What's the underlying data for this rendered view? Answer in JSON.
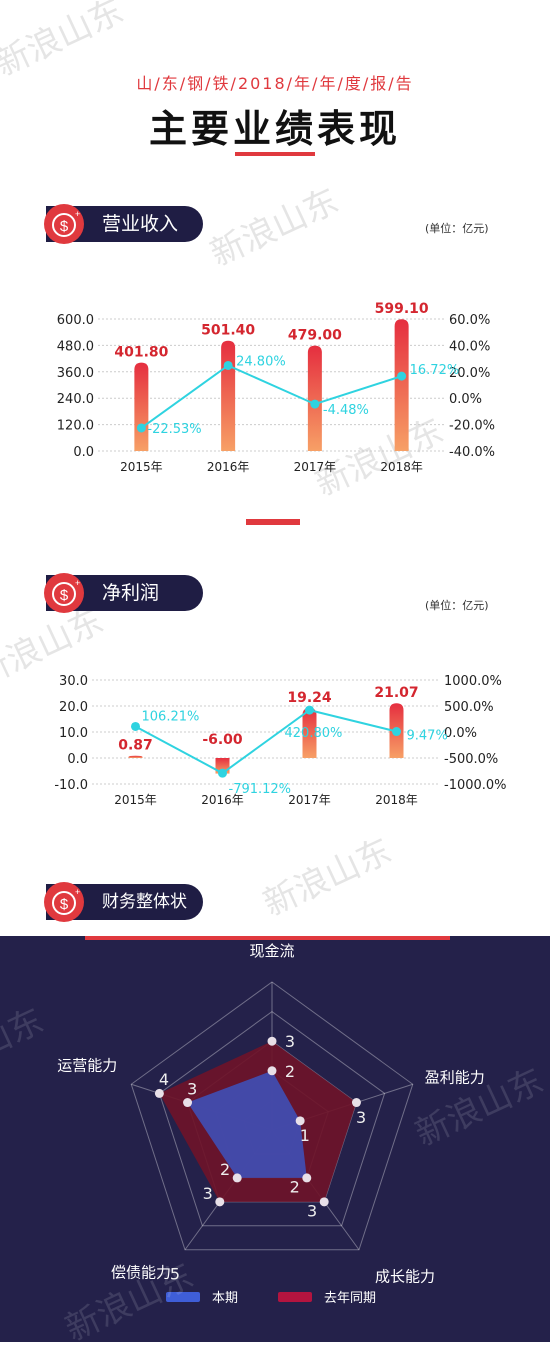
{
  "header": {
    "subtitle": "山/东/钢/铁/2018/年/年/度/报/告",
    "title": "主要业绩表现"
  },
  "watermark_text": "新浪山东",
  "sections": {
    "revenue": {
      "title": "营业收入",
      "unit": "(单位：亿元)"
    },
    "profit": {
      "title": "净利润",
      "unit": "(单位：亿元)"
    },
    "finance": {
      "title": "财务整体状况"
    }
  },
  "colors": {
    "bar_top": "#e52e3f",
    "bar_bottom": "#f7a066",
    "growth_line": "#2fd3e0",
    "dark_bg": "#24214a",
    "accent": "#e0393e",
    "radar_current": "#3f4fb6",
    "radar_last": "#6e1329"
  },
  "chart_data": [
    {
      "type": "bar",
      "name": "revenue",
      "categories": [
        "2015年",
        "2016年",
        "2017年",
        "2018年"
      ],
      "series": [
        {
          "values": [
            401.8,
            501.4,
            479.0,
            599.1
          ],
          "labels": [
            "401.80",
            "501.40",
            "479.00",
            "599.10"
          ],
          "axis": "left"
        },
        {
          "type": "line",
          "values": [
            -22.53,
            24.8,
            -4.48,
            16.72
          ],
          "labels": [
            "-22.53%",
            "24.80%",
            "-4.48%",
            "16.72%"
          ],
          "axis": "right"
        }
      ],
      "y_left": {
        "ticks": [
          "600.0",
          "480.0",
          "360.0",
          "240.0",
          "120.0",
          "0.0"
        ],
        "min": 0,
        "max": 600
      },
      "y_right": {
        "ticks": [
          "60.0%",
          "40.0%",
          "20.0%",
          "0.0%",
          "-20.0%",
          "-40.0%"
        ],
        "min": -40,
        "max": 60
      }
    },
    {
      "type": "bar",
      "name": "net_profit",
      "categories": [
        "2015年",
        "2016年",
        "2017年",
        "2018年"
      ],
      "series": [
        {
          "values": [
            0.87,
            -6.0,
            19.24,
            21.07
          ],
          "labels": [
            "0.87",
            "-6.00",
            "19.24",
            "21.07"
          ],
          "axis": "left"
        },
        {
          "type": "line",
          "values": [
            106.21,
            -791.12,
            420.8,
            9.47
          ],
          "labels": [
            "106.21%",
            "-791.12%",
            "420.80%",
            "9.47%"
          ],
          "axis": "right"
        }
      ],
      "y_left": {
        "ticks": [
          "30.0",
          "20.0",
          "10.0",
          "0.0",
          "-10.0"
        ],
        "min": -10,
        "max": 30
      },
      "y_right": {
        "ticks": [
          "1000.0%",
          "500.0%",
          "0.0%",
          "-500.0%",
          "-1000.0%"
        ],
        "min": -1000,
        "max": 1000
      }
    },
    {
      "type": "radar",
      "name": "financial_overview",
      "axes": [
        "现金流",
        "盈利能力",
        "成长能力",
        "偿债能力",
        "运营能力"
      ],
      "max": 5,
      "scale_label": "5",
      "series": [
        {
          "name": "本期",
          "values": [
            2,
            1,
            2,
            2,
            3
          ]
        },
        {
          "name": "去年同期",
          "values": [
            3,
            3,
            3,
            3,
            4
          ]
        }
      ]
    }
  ]
}
